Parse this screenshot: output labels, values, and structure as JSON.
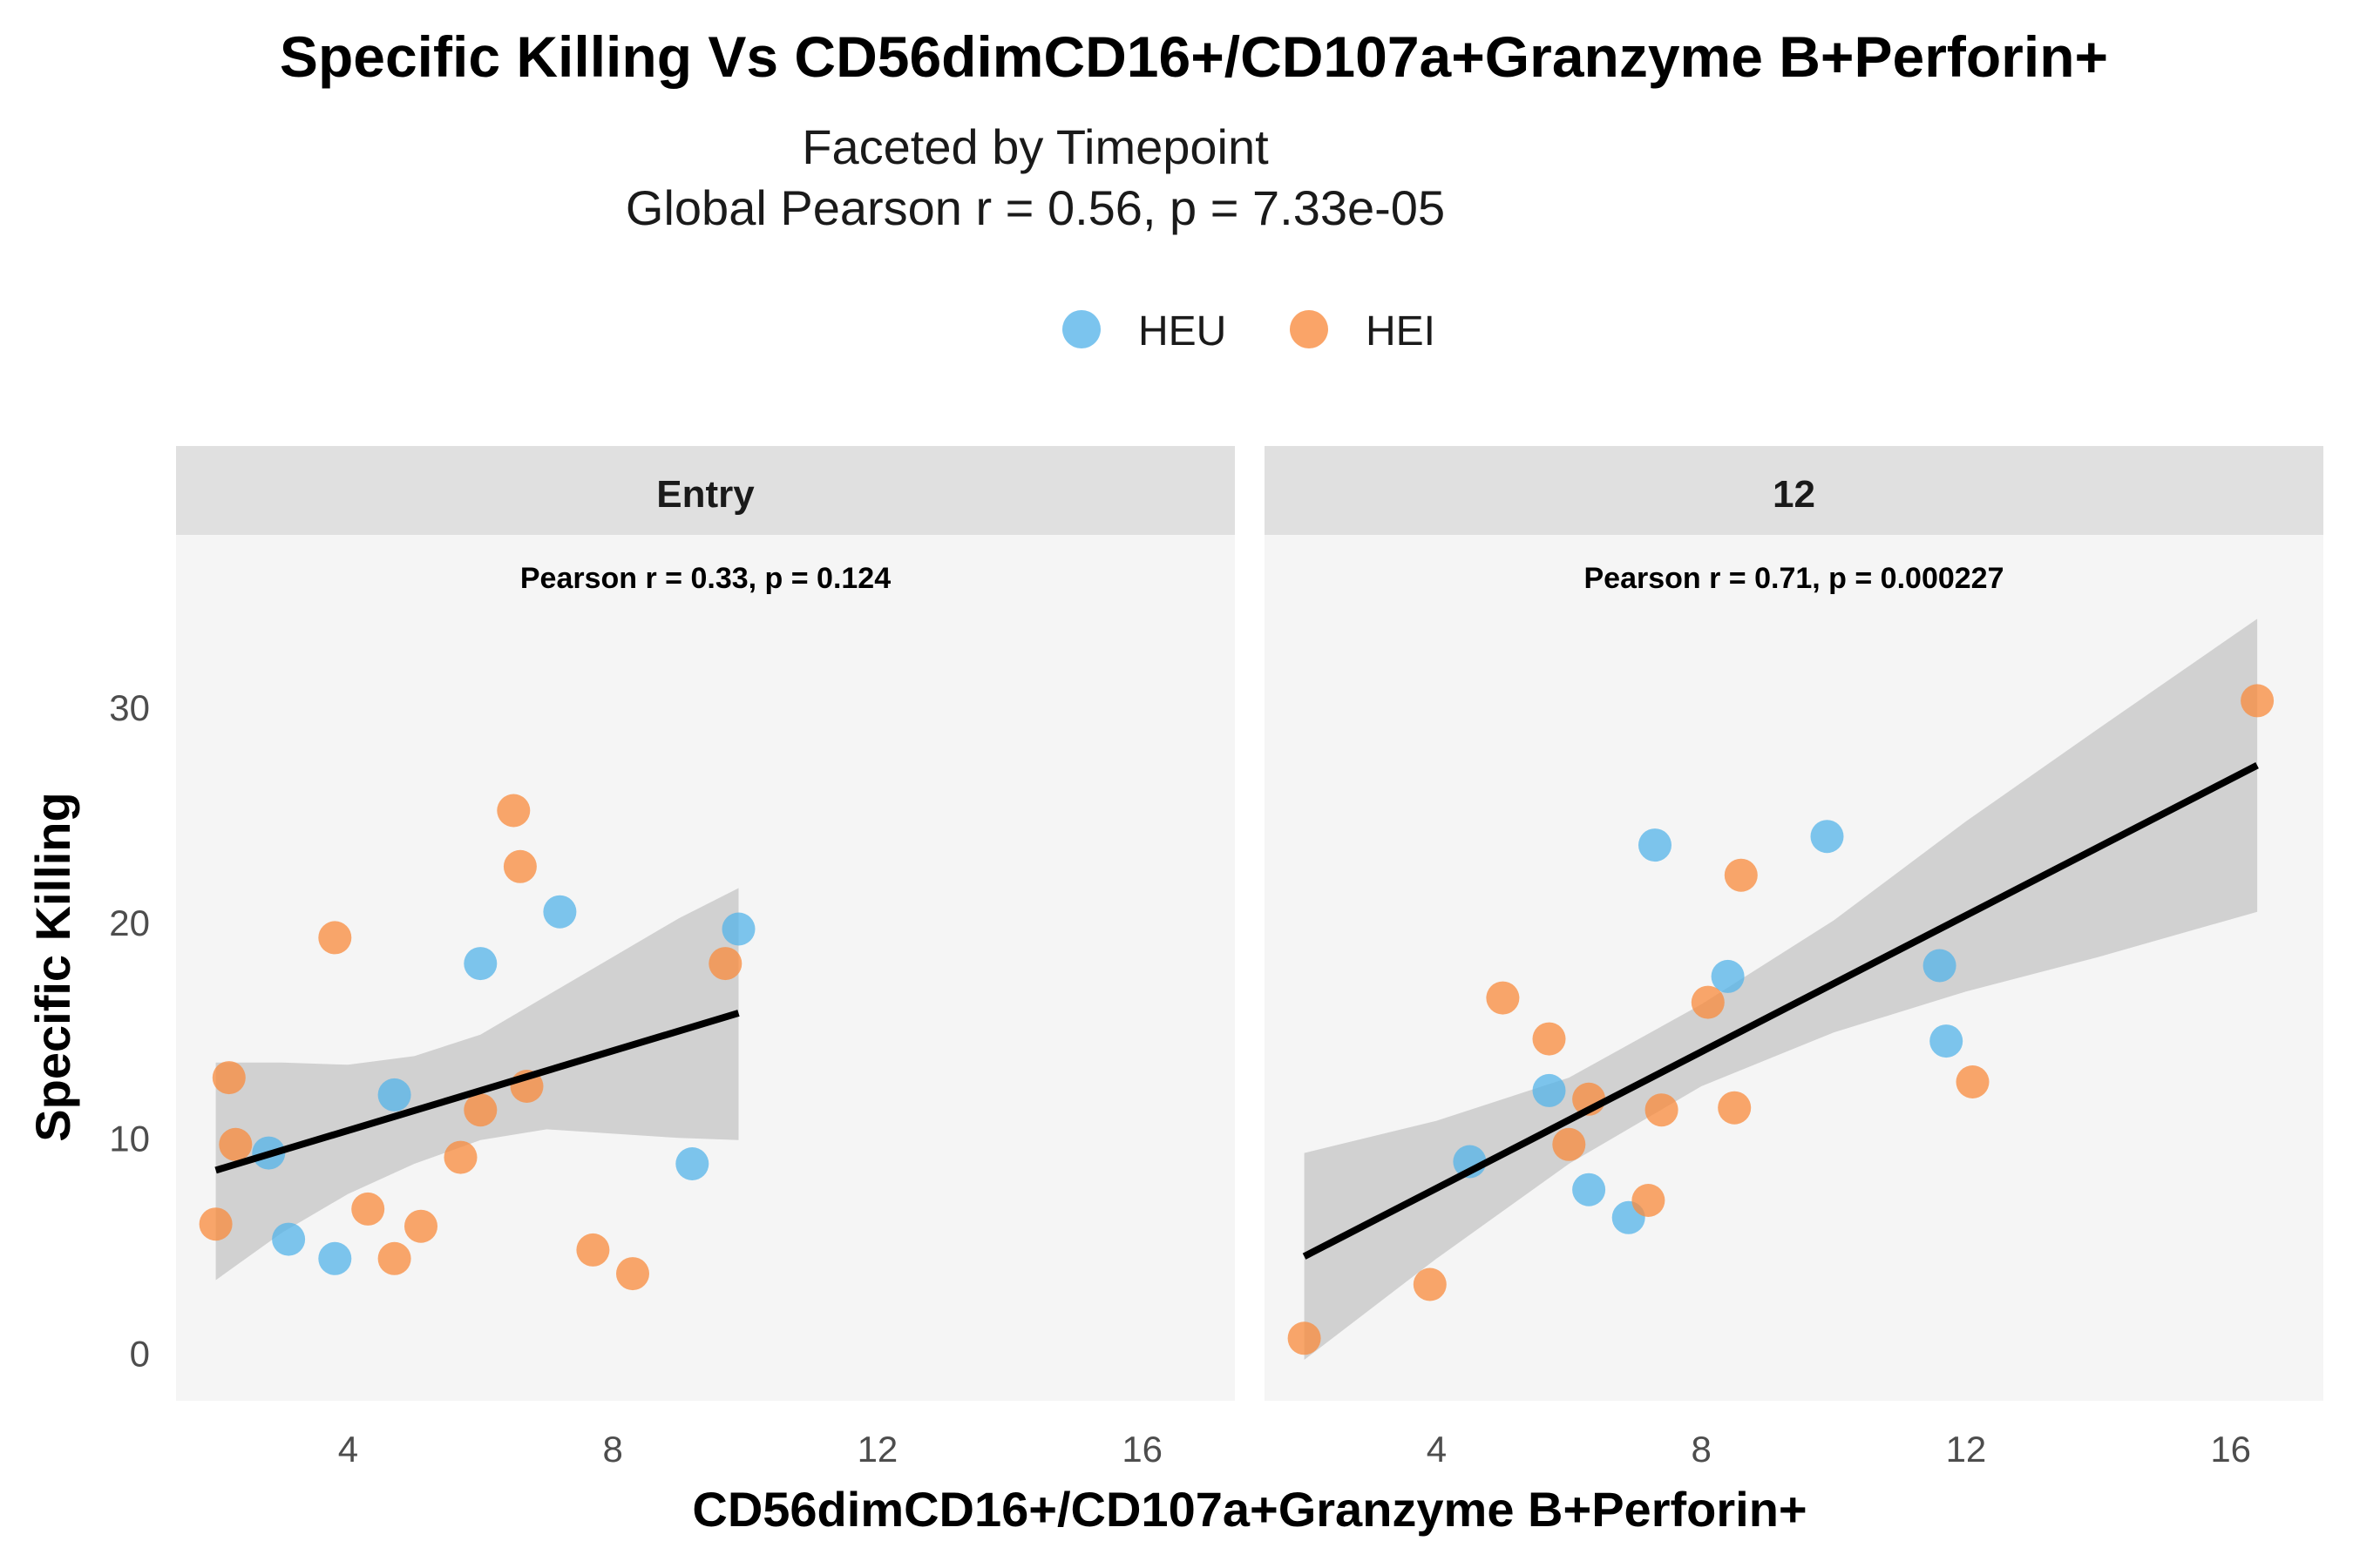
{
  "chart_data": {
    "type": "scatter",
    "title": "Specific Killing Vs CD56dimCD16+/CD107a+Granzyme B+Perforin+",
    "subtitle_lines": [
      "Faceted by Timepoint",
      "Global Pearson r = 0.56, p = 7.33e-05"
    ],
    "xlabel": "CD56dimCD16+/CD107a+Granzyme B+Perforin+",
    "ylabel": "Specific Killing",
    "xlim": [
      1.4,
      17.4
    ],
    "ylim": [
      -2.2,
      38
    ],
    "x_ticks": [
      4,
      8,
      12,
      16
    ],
    "y_ticks": [
      0,
      10,
      20,
      30
    ],
    "legend": {
      "position": "top",
      "entries": [
        {
          "name": "HEU",
          "color": "#56B4E9"
        },
        {
          "name": "HEI",
          "color": "#F98B3E"
        }
      ]
    },
    "colors": {
      "fit_line": "#000000",
      "ci_band": "#bdbdbd",
      "panel_bg": "#f5f5f5",
      "strip_bg": "#e0e0e0"
    },
    "panels": [
      {
        "label": "Entry",
        "annotation": "Pearson r = 0.33, p = 0.124",
        "fit": {
          "x": [
            2.0,
            9.9
          ],
          "y": [
            8.5,
            15.8
          ]
        },
        "ci_band": {
          "x": [
            2.0,
            3.0,
            4.0,
            5.0,
            6.0,
            7.0,
            8.0,
            9.0,
            9.9
          ],
          "lower": [
            3.4,
            5.6,
            7.4,
            8.8,
            9.9,
            10.4,
            10.2,
            10.0,
            9.9
          ],
          "upper": [
            13.5,
            13.5,
            13.4,
            13.8,
            14.8,
            16.6,
            18.4,
            20.2,
            21.6
          ]
        },
        "series": [
          {
            "name": "HEU",
            "points": [
              [
                2.8,
                9.3
              ],
              [
                3.1,
                5.3
              ],
              [
                3.8,
                4.4
              ],
              [
                4.7,
                12.0
              ],
              [
                6.0,
                18.1
              ],
              [
                7.2,
                20.5
              ],
              [
                9.2,
                8.8
              ],
              [
                9.9,
                19.7
              ]
            ]
          },
          {
            "name": "HEI",
            "points": [
              [
                2.0,
                6.0
              ],
              [
                2.2,
                12.8
              ],
              [
                2.3,
                9.7
              ],
              [
                3.8,
                19.3
              ],
              [
                4.3,
                6.7
              ],
              [
                4.7,
                4.4
              ],
              [
                5.1,
                5.9
              ],
              [
                5.7,
                9.1
              ],
              [
                6.0,
                11.3
              ],
              [
                6.5,
                25.2
              ],
              [
                6.6,
                22.6
              ],
              [
                6.7,
                12.4
              ],
              [
                7.7,
                4.8
              ],
              [
                8.3,
                3.7
              ],
              [
                9.7,
                18.1
              ]
            ]
          }
        ]
      },
      {
        "label": "12",
        "annotation": "Pearson r = 0.71, p = 0.000227",
        "fit": {
          "x": [
            2.0,
            16.4
          ],
          "y": [
            4.5,
            27.3
          ]
        },
        "ci_band": {
          "x": [
            2.0,
            4.0,
            6.0,
            8.0,
            10.0,
            12.0,
            14.0,
            16.4
          ],
          "lower": [
            -0.3,
            4.4,
            8.8,
            12.4,
            14.9,
            16.8,
            18.4,
            20.5
          ],
          "upper": [
            9.3,
            10.8,
            12.8,
            16.2,
            20.1,
            24.7,
            29.0,
            34.1
          ]
        },
        "series": [
          {
            "name": "HEU",
            "points": [
              [
                4.5,
                8.9
              ],
              [
                5.7,
                12.2
              ],
              [
                6.3,
                7.6
              ],
              [
                6.9,
                6.3
              ],
              [
                7.3,
                23.6
              ],
              [
                8.4,
                17.5
              ],
              [
                9.9,
                24.0
              ],
              [
                11.6,
                18.0
              ],
              [
                11.7,
                14.5
              ]
            ]
          },
          {
            "name": "HEI",
            "points": [
              [
                2.0,
                0.7
              ],
              [
                3.9,
                3.2
              ],
              [
                5.0,
                16.5
              ],
              [
                5.7,
                14.6
              ],
              [
                6.0,
                9.7
              ],
              [
                6.3,
                11.8
              ],
              [
                7.2,
                7.1
              ],
              [
                7.4,
                11.3
              ],
              [
                8.1,
                16.3
              ],
              [
                8.5,
                11.4
              ],
              [
                8.6,
                22.2
              ],
              [
                12.1,
                12.6
              ],
              [
                16.4,
                30.3
              ]
            ]
          }
        ]
      }
    ]
  }
}
